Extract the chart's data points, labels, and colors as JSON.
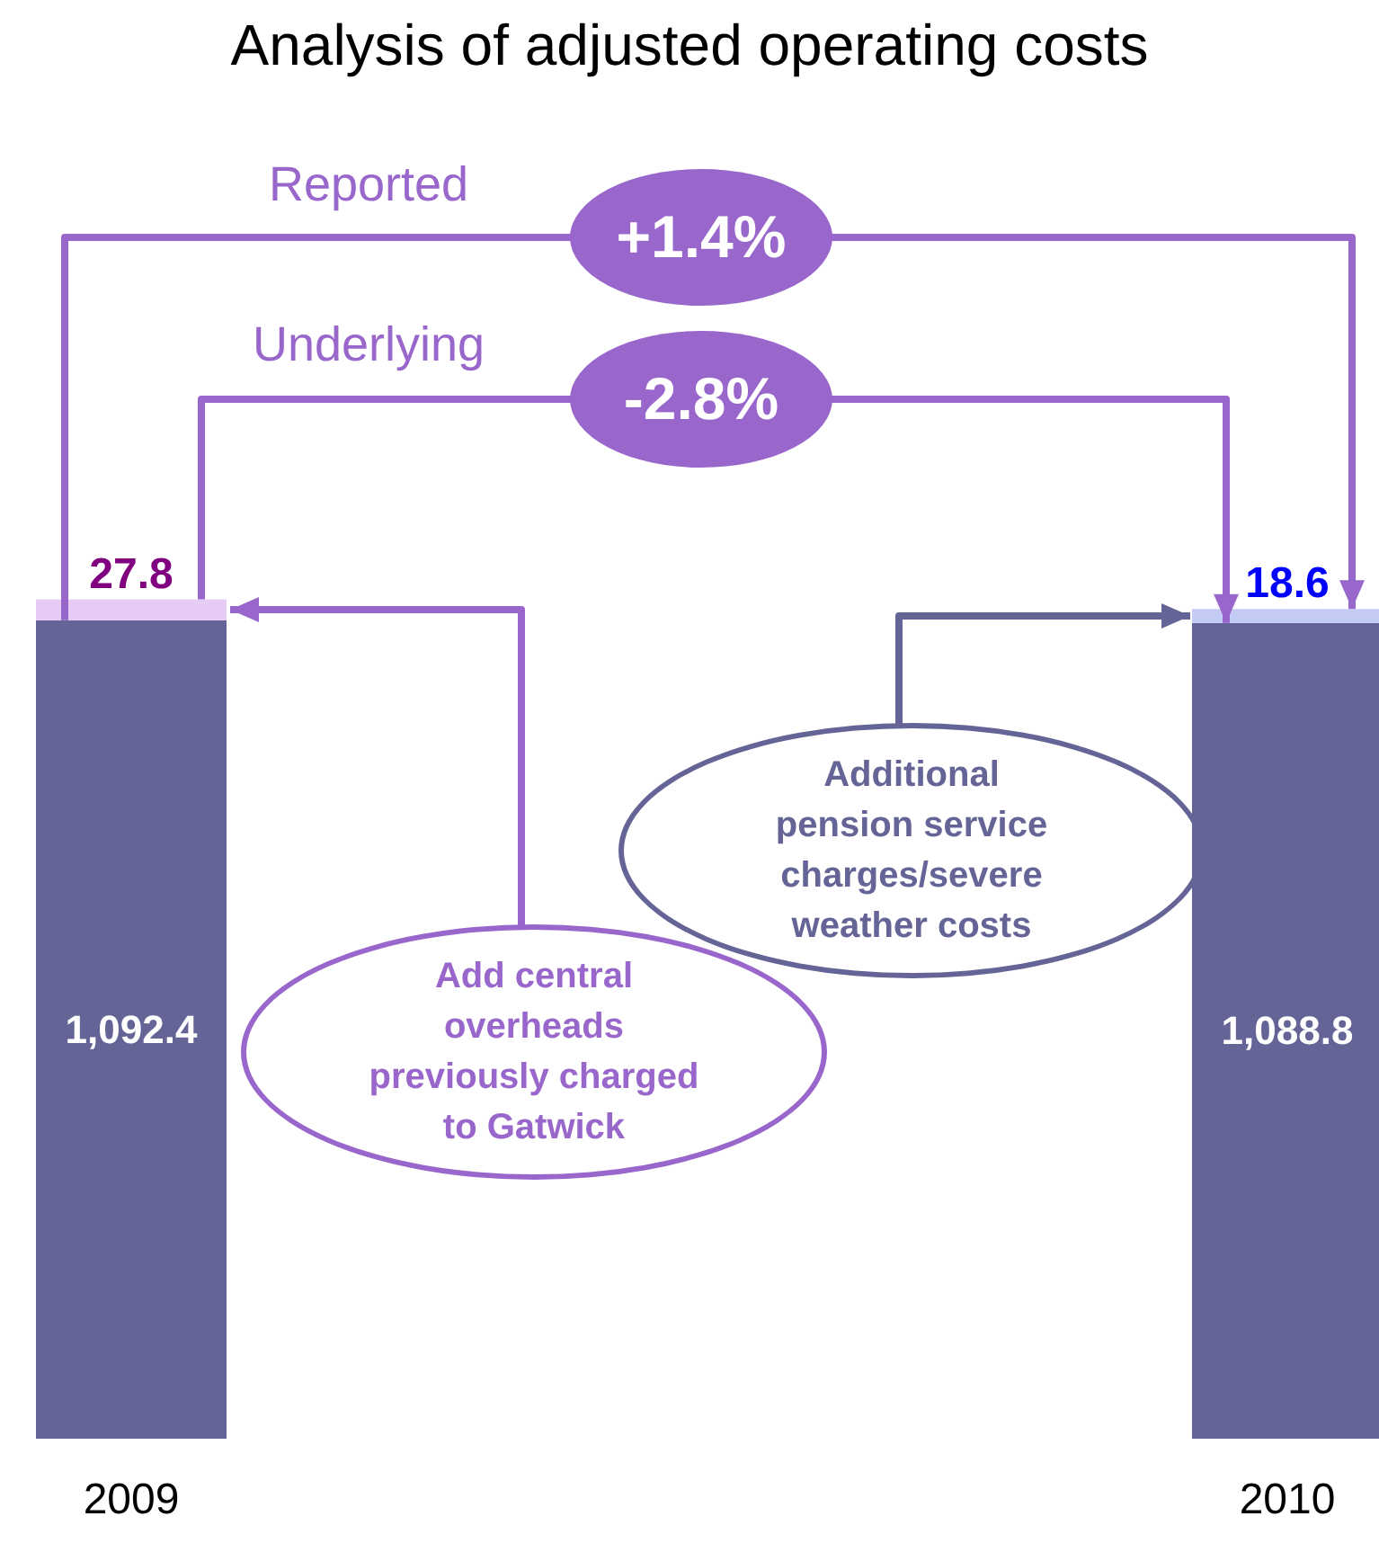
{
  "chart_data": {
    "type": "bar",
    "title": "Analysis of adjusted operating costs",
    "categories": [
      "2009",
      "2010"
    ],
    "stacked": true,
    "series": [
      {
        "color": "#646496",
        "values": [
          1092.4,
          1088.8
        ],
        "value_labels": [
          "1,092.4",
          "1,088.8"
        ]
      },
      {
        "colors": [
          "#e6ccf5",
          "#c4ccf5"
        ],
        "values": [
          27.8,
          18.6
        ],
        "value_labels": [
          "27.8",
          "18.6"
        ]
      }
    ],
    "annotations": [
      "Reported",
      "+1.4%",
      "Underlying",
      "-2.8%",
      "Add central overheads previously charged to Gatwick",
      "Additional pension service charges/severe weather costs"
    ]
  }
}
